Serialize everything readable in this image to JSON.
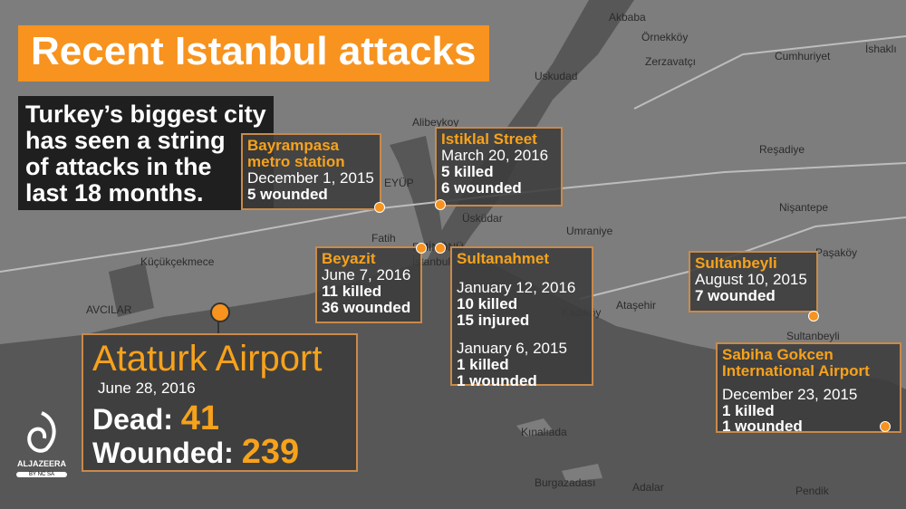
{
  "header": {
    "title": "Recent Istanbul attacks",
    "subtitle": [
      "Turkey’s biggest city",
      "has seen a string",
      "of attacks in the",
      "last 18 months."
    ]
  },
  "attacks": [
    {
      "name": [
        "Bayrampasa",
        "metro station"
      ],
      "date": "December 1, 2015",
      "toll": [
        "5 wounded"
      ]
    },
    {
      "name": [
        "Istiklal Street"
      ],
      "date": "March 20, 2016",
      "toll": [
        "5 killed",
        "6 wounded"
      ]
    },
    {
      "name": [
        "Beyazit"
      ],
      "date": "June 7, 2016",
      "toll": [
        "11 killed",
        "36 wounded"
      ]
    },
    {
      "name": [
        "Sultanbeyli"
      ],
      "date": "August 10, 2015",
      "toll": [
        "7 wounded"
      ]
    },
    {
      "name": [
        "Sabiha Gokcen",
        "International Airport"
      ],
      "date": "December 23, 2015",
      "toll": [
        "1 killed",
        "1 wounded"
      ]
    }
  ],
  "sultanahmet": {
    "name": "Sultanahmet",
    "events": [
      {
        "date": "January 12, 2016",
        "toll": [
          "10 killed",
          "15 injured"
        ]
      },
      {
        "date": "January 6, 2015",
        "toll": [
          "1 killed",
          "1 wounded"
        ]
      }
    ]
  },
  "ataturk": {
    "name": "Ataturk Airport",
    "date": "June 28, 2016",
    "dead_label": "Dead:",
    "dead": 41,
    "wounded_label": "Wounded:",
    "wounded": 239
  },
  "map_labels": [
    "Akbaba",
    "Örnekköy",
    "Zerzavatçı",
    "Cumhuriyet",
    "İshaklı",
    "Uskudad",
    "Alibeykoy",
    "Reşadiye",
    "EYÜP",
    "Nişantepe",
    "Üsküdar",
    "Umraniye",
    "Fatih",
    "Paşaköy",
    "Küçükçekmece",
    "EMİNÖNÜ",
    "İstanbul",
    "Ataşehir",
    "Kadıköy",
    "AVCILAR",
    "Sultanbeyli",
    "Kınalıada",
    "Burgazadası",
    "Adalar",
    "Pendik"
  ],
  "logo": {
    "name": "ALJAZEERA",
    "license": "BY NC SA"
  }
}
